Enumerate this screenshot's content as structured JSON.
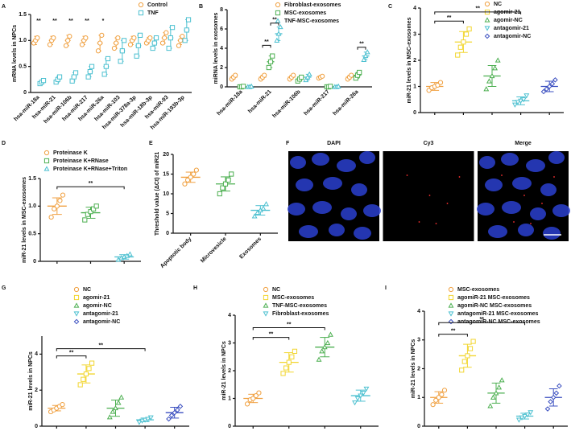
{
  "chart_data": [
    {
      "label": "A",
      "type": "dot",
      "ylabel": "mRNA levels in NPCs",
      "ylim": [
        0,
        1.5
      ],
      "yticks": [
        0,
        0.5,
        {
          "value": 1,
          "label": "1.0"
        },
        1.5
      ],
      "categories": [
        "hsa-miR-18a",
        "hsa-miR-21",
        "hsa-miR-106b",
        "hsa-miR-217",
        "hsa-miR-26a",
        "hsa-miR-103",
        "hsa-miR-378a-3p",
        "hsa-miR-18b-3p",
        "hsa-miR-93",
        "hsa-miR-193b-3p"
      ],
      "series": [
        {
          "name": "Control",
          "color": "#f0a040",
          "marker": "circle",
          "mean": [
            1.0,
            1.0,
            1.0,
            1.0,
            0.95,
            0.95,
            1.0,
            1.0,
            1.05,
            1.0
          ],
          "sd": [
            0.08,
            0.08,
            0.1,
            0.08,
            0.15,
            0.1,
            0.08,
            0.06,
            0.1,
            0.08
          ],
          "points": [
            [
              0.95,
              1.0,
              1.05
            ],
            [
              0.92,
              1.0,
              1.05
            ],
            [
              0.9,
              1.0,
              1.08
            ],
            [
              0.92,
              1.0,
              1.05
            ],
            [
              0.8,
              0.95,
              1.1
            ],
            [
              0.85,
              0.95,
              1.05
            ],
            [
              0.92,
              1.0,
              1.05
            ],
            [
              0.95,
              1.0,
              1.05
            ],
            [
              0.95,
              1.05,
              1.15
            ],
            [
              0.9,
              1.0,
              1.08
            ]
          ]
        },
        {
          "name": "TNF",
          "color": "#4cc0d0",
          "marker": "square",
          "mean": [
            0.2,
            0.25,
            0.3,
            0.4,
            0.5,
            0.8,
            0.9,
            0.95,
            1.05,
            1.2
          ],
          "sd": [
            0.04,
            0.06,
            0.08,
            0.1,
            0.15,
            0.2,
            0.2,
            0.1,
            0.2,
            0.2
          ],
          "points": [
            [
              0.17,
              0.2,
              0.23
            ],
            [
              0.2,
              0.25,
              0.3
            ],
            [
              0.22,
              0.3,
              0.38
            ],
            [
              0.3,
              0.4,
              0.5
            ],
            [
              0.35,
              0.5,
              0.65
            ],
            [
              0.6,
              0.8,
              1.0
            ],
            [
              0.7,
              0.9,
              1.1
            ],
            [
              0.85,
              0.95,
              1.05
            ],
            [
              0.85,
              1.05,
              1.25
            ],
            [
              1.0,
              1.2,
              1.4
            ]
          ]
        }
      ],
      "annotations": [
        {
          "category": "hsa-miR-18a",
          "label": "**"
        },
        {
          "category": "hsa-miR-21",
          "label": "**"
        },
        {
          "category": "hsa-miR-106b",
          "label": "**"
        },
        {
          "category": "hsa-miR-217",
          "label": "**"
        },
        {
          "category": "hsa-miR-26a",
          "label": "*"
        }
      ]
    },
    {
      "label": "B",
      "type": "dot",
      "ylabel": "miRNA levels in exosomes",
      "ylim": [
        0,
        8
      ],
      "yticks": [
        0,
        2,
        4,
        6,
        8
      ],
      "categories": [
        "hsa-miR-18a",
        "hsa-miR-21",
        "hsa-miR-106b",
        "hsa-miR-217",
        "hsa-miR-26a"
      ],
      "series": [
        {
          "name": "Fibroblast-exosomes",
          "color": "#f0a040",
          "marker": "circle",
          "mean": [
            1,
            1,
            1,
            1,
            1
          ],
          "sd": [
            0.2,
            0.2,
            0.2,
            0.1,
            0.2
          ],
          "points": [
            [
              0.8,
              1,
              1.2
            ],
            [
              0.8,
              1,
              1.2
            ],
            [
              0.8,
              1,
              1.2
            ],
            [
              0.9,
              1,
              1.1
            ],
            [
              0.8,
              1,
              1.2
            ]
          ]
        },
        {
          "name": "MSC-exosomes",
          "color": "#4caf50",
          "marker": "square",
          "mean": [
            0,
            2.6,
            0.8,
            0,
            1.2
          ],
          "sd": [
            0.05,
            0.6,
            0.2,
            0.05,
            0.3
          ],
          "points": [
            [
              0,
              0,
              0.05
            ],
            [
              2.0,
              2.6,
              3.2
            ],
            [
              0.6,
              0.8,
              1.0
            ],
            [
              0,
              0,
              0.05
            ],
            [
              0.9,
              1.2,
              1.5
            ]
          ]
        },
        {
          "name": "TNF-MSC-exosomes",
          "color": "#4cc0d0",
          "marker": "triangle",
          "mean": [
            0,
            5.5,
            1.0,
            0,
            3.2
          ],
          "sd": [
            0.05,
            0.7,
            0.3,
            0.05,
            0.4
          ],
          "points": [
            [
              0,
              0,
              0.05
            ],
            [
              4.8,
              5.5,
              6.2
            ],
            [
              0.7,
              1.0,
              1.3
            ],
            [
              0,
              0,
              0.05
            ],
            [
              2.8,
              3.2,
              3.6
            ]
          ]
        }
      ],
      "brackets": [
        {
          "category": "hsa-miR-21",
          "from": "Fibroblast-exosomes",
          "to": "MSC-exosomes",
          "y": 4.3,
          "label": "**"
        },
        {
          "category": "hsa-miR-21",
          "from": "MSC-exosomes",
          "to": "TNF-MSC-exosomes",
          "y": 6.6,
          "label": "**"
        },
        {
          "category": "hsa-miR-26a",
          "from": "MSC-exosomes",
          "to": "TNF-MSC-exosomes",
          "y": 4.1,
          "label": "**"
        }
      ]
    },
    {
      "label": "C",
      "type": "group-dot",
      "legend": true,
      "ylabel": "miR-21 levels in MSC-exosomes",
      "ylim": [
        0,
        4
      ],
      "yticks": [
        0,
        1,
        2,
        3,
        4
      ],
      "groups": [
        {
          "name": "NC",
          "color": "#f0a040",
          "marker": "circle",
          "mean": 1.0,
          "sd": 0.15,
          "points": [
            0.85,
            0.95,
            1.0,
            1.05,
            1.15
          ]
        },
        {
          "name": "agomir-21",
          "color": "#f2d630",
          "marker": "square",
          "mean": 2.7,
          "sd": 0.4,
          "points": [
            2.2,
            2.5,
            2.7,
            3.0,
            3.2
          ]
        },
        {
          "name": "agomir-NC",
          "color": "#4caf50",
          "marker": "triangle",
          "mean": 1.4,
          "sd": 0.4,
          "points": [
            0.9,
            1.2,
            1.4,
            1.7,
            2.0
          ]
        },
        {
          "name": "antagomir-21",
          "color": "#4cc0d0",
          "marker": "triangle-down",
          "mean": 0.45,
          "sd": 0.15,
          "points": [
            0.3,
            0.4,
            0.45,
            0.5,
            0.65
          ]
        },
        {
          "name": "antagomir-NC",
          "color": "#3b4fc0",
          "marker": "diamond",
          "mean": 1.0,
          "sd": 0.2,
          "points": [
            0.8,
            0.9,
            1.0,
            1.1,
            1.25
          ]
        }
      ],
      "brackets": [
        {
          "from": "NC",
          "to": "agomir-21",
          "y": 3.5,
          "label": "**"
        },
        {
          "from": "NC",
          "to": "antagomir-21",
          "y": 3.85,
          "label": "**"
        }
      ]
    },
    {
      "label": "D",
      "type": "group-dot",
      "legend": true,
      "ylabel": "miR-21 levels in MSC-exosomes",
      "ylim": [
        0,
        1.5
      ],
      "yticks": [
        0,
        0.5,
        {
          "value": 1,
          "label": "1.0"
        },
        1.5
      ],
      "groups": [
        {
          "name": "Proteinase K",
          "color": "#f0a040",
          "marker": "circle",
          "mean": 1.0,
          "sd": 0.15,
          "points": [
            0.8,
            0.95,
            1.0,
            1.1,
            1.2
          ]
        },
        {
          "name": "Proteinase K+RNase",
          "color": "#4caf50",
          "marker": "square",
          "mean": 0.88,
          "sd": 0.1,
          "points": [
            0.75,
            0.85,
            0.9,
            0.95,
            1.0
          ]
        },
        {
          "name": "Proteinase K+RNase+Triton",
          "color": "#4cc0d0",
          "marker": "triangle",
          "mean": 0.08,
          "sd": 0.04,
          "points": [
            0.03,
            0.06,
            0.08,
            0.1,
            0.13
          ]
        }
      ],
      "brackets": [
        {
          "from": "Proteinase K",
          "to": "Proteinase K+RNase+Triton",
          "y": 1.35,
          "label": "**"
        }
      ]
    },
    {
      "label": "E",
      "type": "group-dot",
      "legend": false,
      "ylabel": "Threshold value (ΔCt) of miR21",
      "ylim": [
        0,
        20
      ],
      "yticks": [
        0,
        5,
        10,
        15,
        20
      ],
      "groups": [
        {
          "name": "Apoptotic body",
          "color": "#f0a040",
          "marker": "circle",
          "mean": 14.2,
          "sd": 1.3,
          "points": [
            12.5,
            13.5,
            14.2,
            15,
            16
          ]
        },
        {
          "name": "Microvesicle",
          "color": "#4caf50",
          "marker": "square",
          "mean": 12.5,
          "sd": 1.8,
          "points": [
            10,
            11.5,
            12.5,
            13.5,
            15
          ]
        },
        {
          "name": "Exosomes",
          "color": "#4cc0d0",
          "marker": "triangle",
          "mean": 5.8,
          "sd": 1.2,
          "points": [
            4.3,
            5.2,
            5.8,
            6.3,
            7.4
          ]
        }
      ],
      "brackets": []
    },
    {
      "label": "F",
      "type": "image",
      "panels": [
        {
          "title": "DAPI",
          "color": "#3b4fd0"
        },
        {
          "title": "Cy3",
          "color": "#e03030"
        },
        {
          "title": "Merge",
          "color": "#ffffff"
        }
      ]
    },
    {
      "label": "G",
      "type": "group-dot",
      "legend": true,
      "ylabel": "miR-21 levels in NPCs",
      "ylim": [
        0,
        5
      ],
      "yticks": [
        0,
        2,
        4
      ],
      "groups": [
        {
          "name": "NC",
          "color": "#f0a040",
          "marker": "circle",
          "mean": 1.0,
          "sd": 0.15,
          "points": [
            0.8,
            0.9,
            1.0,
            1.1,
            1.2
          ]
        },
        {
          "name": "agomir-21",
          "color": "#f2d630",
          "marker": "square",
          "mean": 2.9,
          "sd": 0.5,
          "points": [
            2.3,
            2.6,
            2.9,
            3.2,
            3.5
          ]
        },
        {
          "name": "agomir-NC",
          "color": "#4caf50",
          "marker": "triangle",
          "mean": 1.0,
          "sd": 0.45,
          "points": [
            0.5,
            0.8,
            1.0,
            1.3,
            1.6
          ]
        },
        {
          "name": "antagomir-21",
          "color": "#4cc0d0",
          "marker": "triangle-down",
          "mean": 0.35,
          "sd": 0.1,
          "points": [
            0.22,
            0.3,
            0.35,
            0.4,
            0.48
          ]
        },
        {
          "name": "antagomir-NC",
          "color": "#3b4fc0",
          "marker": "diamond",
          "mean": 0.75,
          "sd": 0.3,
          "points": [
            0.4,
            0.6,
            0.75,
            0.9,
            1.1
          ]
        }
      ],
      "brackets": [
        {
          "from": "NC",
          "to": "agomir-21",
          "y": 3.9,
          "label": "**"
        },
        {
          "from": "NC",
          "to": "antagomir-21",
          "y": 4.3,
          "label": "**"
        }
      ]
    },
    {
      "label": "H",
      "type": "group-dot",
      "legend": true,
      "ylabel": "miR-21 levels in NPCs",
      "ylim": [
        0,
        4
      ],
      "yticks": [
        0,
        1,
        2,
        3,
        4
      ],
      "groups": [
        {
          "name": "NC",
          "color": "#f0a040",
          "marker": "circle",
          "mean": 1.0,
          "sd": 0.15,
          "points": [
            0.8,
            0.95,
            1.0,
            1.1,
            1.2
          ]
        },
        {
          "name": "MSC-exosomes",
          "color": "#f2d630",
          "marker": "square",
          "mean": 2.3,
          "sd": 0.35,
          "points": [
            1.9,
            2.1,
            2.3,
            2.5,
            2.7
          ]
        },
        {
          "name": "TNF-MSC-exosomes",
          "color": "#4caf50",
          "marker": "triangle",
          "mean": 2.85,
          "sd": 0.35,
          "points": [
            2.4,
            2.7,
            2.85,
            3.0,
            3.3
          ]
        },
        {
          "name": "Fibroblast-exosomes",
          "color": "#4cc0d0",
          "marker": "triangle-down",
          "mean": 1.1,
          "sd": 0.2,
          "points": [
            0.85,
            1.0,
            1.1,
            1.2,
            1.35
          ]
        }
      ],
      "brackets": [
        {
          "from": "NC",
          "to": "MSC-exosomes",
          "y": 3.2,
          "label": "**"
        },
        {
          "from": "NC",
          "to": "TNF-MSC-exosomes",
          "y": 3.55,
          "label": "**"
        }
      ]
    },
    {
      "label": "I",
      "type": "group-dot",
      "legend": true,
      "ylabel": "miR-21 levels in NPCs",
      "ylim": [
        0,
        4
      ],
      "yticks": [
        0,
        1,
        2,
        3,
        4
      ],
      "groups": [
        {
          "name": "MSC-exosomes",
          "color": "#f0a040",
          "marker": "circle",
          "mean": 1.0,
          "sd": 0.2,
          "points": [
            0.75,
            0.9,
            1.0,
            1.1,
            1.25
          ]
        },
        {
          "name": "agomiR-21 MSC-exosomes",
          "color": "#f2d630",
          "marker": "square",
          "mean": 2.45,
          "sd": 0.4,
          "points": [
            1.95,
            2.25,
            2.45,
            2.7,
            2.95
          ]
        },
        {
          "name": "agomiR-NC MSC-exosomes",
          "color": "#4caf50",
          "marker": "triangle",
          "mean": 1.15,
          "sd": 0.35,
          "points": [
            0.7,
            1.0,
            1.15,
            1.35,
            1.6
          ]
        },
        {
          "name": "antagomiR-21 MSC-exosomes",
          "color": "#4cc0d0",
          "marker": "triangle-down",
          "mean": 0.35,
          "sd": 0.1,
          "points": [
            0.22,
            0.3,
            0.35,
            0.4,
            0.48
          ]
        },
        {
          "name": "antagomiR-NC MSC-exosomes",
          "color": "#3b4fc0",
          "marker": "diamond",
          "mean": 1.0,
          "sd": 0.3,
          "points": [
            0.6,
            0.85,
            1.0,
            1.15,
            1.4
          ]
        }
      ],
      "brackets": [
        {
          "from": "MSC-exosomes",
          "to": "agomiR-21 MSC-exosomes",
          "y": 3.2,
          "label": "**"
        },
        {
          "from": "MSC-exosomes",
          "to": "antagomiR-21 MSC-exosomes",
          "y": 3.6,
          "label": "**"
        }
      ]
    }
  ]
}
